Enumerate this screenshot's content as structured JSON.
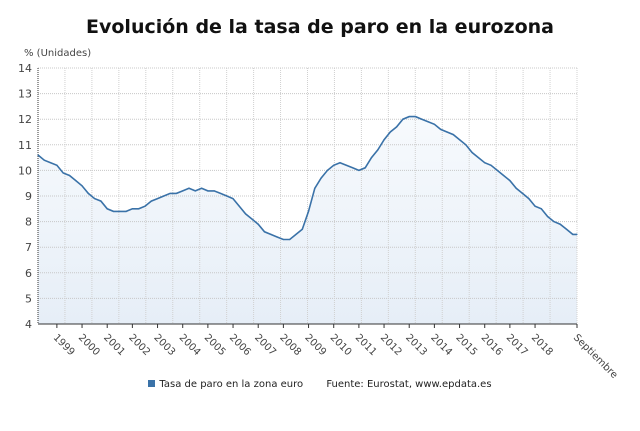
{
  "chart_data": {
    "type": "area",
    "title": "Evolución de la tasa de paro en la eurozona",
    "ylabel": "% (Unidades)",
    "xlabel": "",
    "ylim": [
      4,
      14
    ],
    "yticks": [
      4,
      5,
      6,
      7,
      8,
      9,
      10,
      11,
      12,
      13,
      14
    ],
    "xlim": [
      "1998-04",
      "2019-09"
    ],
    "xtick_labels": [
      "1999",
      "2000",
      "2001",
      "2002",
      "2003",
      "2004",
      "2005",
      "2006",
      "2007",
      "2008",
      "2009",
      "2010",
      "2011",
      "2012",
      "2013",
      "2014",
      "2015",
      "2016",
      "2017",
      "2018",
      "Septiembre"
    ],
    "grid": true,
    "legend_position": "bottom",
    "series": [
      {
        "name": "Tasa de paro en la zona euro",
        "color": "#3a72a8",
        "fill": "#eaf1f8",
        "x": [
          "1998-04",
          "1998-07",
          "1998-10",
          "1999-01",
          "1999-04",
          "1999-07",
          "1999-10",
          "2000-01",
          "2000-04",
          "2000-07",
          "2000-10",
          "2001-01",
          "2001-04",
          "2001-07",
          "2001-10",
          "2002-01",
          "2002-04",
          "2002-07",
          "2002-10",
          "2003-01",
          "2003-04",
          "2003-07",
          "2003-10",
          "2004-01",
          "2004-04",
          "2004-07",
          "2004-10",
          "2005-01",
          "2005-04",
          "2005-07",
          "2005-10",
          "2006-01",
          "2006-04",
          "2006-07",
          "2006-10",
          "2007-01",
          "2007-04",
          "2007-07",
          "2007-10",
          "2008-01",
          "2008-04",
          "2008-07",
          "2008-10",
          "2009-01",
          "2009-04",
          "2009-07",
          "2009-10",
          "2010-01",
          "2010-04",
          "2010-07",
          "2010-10",
          "2011-01",
          "2011-04",
          "2011-07",
          "2011-10",
          "2012-01",
          "2012-04",
          "2012-07",
          "2012-10",
          "2013-01",
          "2013-04",
          "2013-07",
          "2013-10",
          "2014-01",
          "2014-04",
          "2014-07",
          "2014-10",
          "2015-01",
          "2015-04",
          "2015-07",
          "2015-10",
          "2016-01",
          "2016-04",
          "2016-07",
          "2016-10",
          "2017-01",
          "2017-04",
          "2017-07",
          "2017-10",
          "2018-01",
          "2018-04",
          "2018-07",
          "2018-10",
          "2019-01",
          "2019-04",
          "2019-07",
          "2019-09"
        ],
        "values": [
          10.6,
          10.4,
          10.3,
          10.2,
          9.9,
          9.8,
          9.6,
          9.4,
          9.1,
          8.9,
          8.8,
          8.5,
          8.4,
          8.4,
          8.4,
          8.5,
          8.5,
          8.6,
          8.8,
          8.9,
          9.0,
          9.1,
          9.1,
          9.2,
          9.3,
          9.2,
          9.3,
          9.2,
          9.2,
          9.1,
          9.0,
          8.9,
          8.6,
          8.3,
          8.1,
          7.9,
          7.6,
          7.5,
          7.4,
          7.3,
          7.3,
          7.5,
          7.7,
          8.4,
          9.3,
          9.7,
          10.0,
          10.2,
          10.3,
          10.2,
          10.1,
          10.0,
          10.1,
          10.5,
          10.8,
          11.2,
          11.5,
          11.7,
          12.0,
          12.1,
          12.1,
          12.0,
          11.9,
          11.8,
          11.6,
          11.5,
          11.4,
          11.2,
          11.0,
          10.7,
          10.5,
          10.3,
          10.2,
          10.0,
          9.8,
          9.6,
          9.3,
          9.1,
          8.9,
          8.6,
          8.5,
          8.2,
          8.0,
          7.9,
          7.7,
          7.5,
          7.5
        ]
      }
    ],
    "source": "Fuente: Eurostat, www.epdata.es"
  }
}
